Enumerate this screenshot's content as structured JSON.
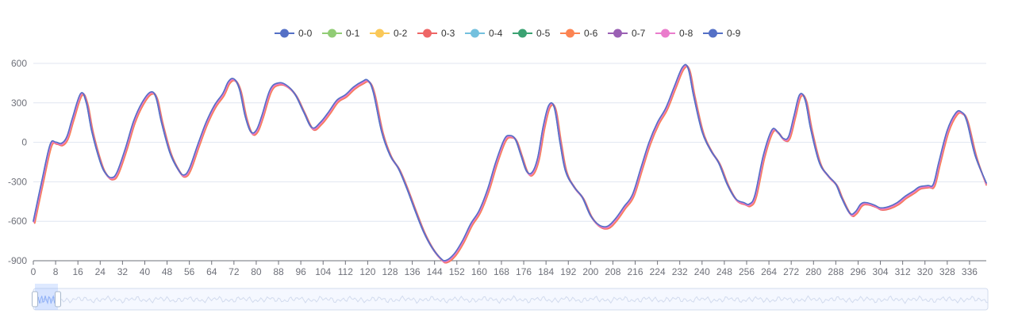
{
  "chart_data": {
    "type": "line",
    "title": "",
    "xlabel": "",
    "ylabel": "",
    "ylim": [
      -900,
      600
    ],
    "y_ticks": [
      "-900",
      "-600",
      "-300",
      "0",
      "300",
      "600"
    ],
    "xlim": [
      0,
      342
    ],
    "x_tick_step": 8,
    "x_ticks": [
      "0",
      "8",
      "16",
      "24",
      "32",
      "40",
      "48",
      "56",
      "64",
      "72",
      "80",
      "88",
      "96",
      "104",
      "112",
      "120",
      "128",
      "136",
      "144",
      "152",
      "160",
      "168",
      "176",
      "184",
      "192",
      "200",
      "208",
      "216",
      "224",
      "232",
      "240",
      "248",
      "256",
      "264",
      "272",
      "280",
      "288",
      "296",
      "304",
      "312",
      "320",
      "328",
      "336"
    ],
    "legend": {
      "position": "top-center"
    },
    "grid": true,
    "base_curve": [
      [
        0,
        -600
      ],
      [
        3,
        -300
      ],
      [
        6,
        -20
      ],
      [
        8,
        0
      ],
      [
        10,
        -10
      ],
      [
        12,
        40
      ],
      [
        14,
        180
      ],
      [
        17,
        370
      ],
      [
        19,
        300
      ],
      [
        21,
        80
      ],
      [
        24,
        -150
      ],
      [
        26,
        -240
      ],
      [
        28,
        -270
      ],
      [
        30,
        -230
      ],
      [
        33,
        -50
      ],
      [
        36,
        160
      ],
      [
        39,
        300
      ],
      [
        42,
        380
      ],
      [
        44,
        340
      ],
      [
        46,
        150
      ],
      [
        49,
        -80
      ],
      [
        52,
        -210
      ],
      [
        54,
        -250
      ],
      [
        56,
        -200
      ],
      [
        59,
        -20
      ],
      [
        62,
        150
      ],
      [
        65,
        280
      ],
      [
        68,
        370
      ],
      [
        70,
        460
      ],
      [
        72,
        480
      ],
      [
        74,
        400
      ],
      [
        76,
        200
      ],
      [
        78,
        80
      ],
      [
        80,
        90
      ],
      [
        82,
        200
      ],
      [
        85,
        400
      ],
      [
        88,
        450
      ],
      [
        91,
        430
      ],
      [
        94,
        360
      ],
      [
        97,
        230
      ],
      [
        100,
        110
      ],
      [
        103,
        150
      ],
      [
        106,
        230
      ],
      [
        109,
        320
      ],
      [
        112,
        360
      ],
      [
        115,
        420
      ],
      [
        118,
        460
      ],
      [
        120,
        470
      ],
      [
        122,
        380
      ],
      [
        125,
        80
      ],
      [
        128,
        -100
      ],
      [
        131,
        -200
      ],
      [
        134,
        -350
      ],
      [
        137,
        -520
      ],
      [
        140,
        -680
      ],
      [
        143,
        -800
      ],
      [
        146,
        -880
      ],
      [
        148,
        -900
      ],
      [
        151,
        -850
      ],
      [
        154,
        -750
      ],
      [
        157,
        -620
      ],
      [
        160,
        -520
      ],
      [
        163,
        -360
      ],
      [
        166,
        -150
      ],
      [
        169,
        20
      ],
      [
        171,
        50
      ],
      [
        173,
        20
      ],
      [
        175,
        -100
      ],
      [
        177,
        -220
      ],
      [
        179,
        -230
      ],
      [
        181,
        -120
      ],
      [
        183,
        120
      ],
      [
        185,
        280
      ],
      [
        187,
        260
      ],
      [
        189,
        0
      ],
      [
        191,
        -220
      ],
      [
        194,
        -340
      ],
      [
        197,
        -420
      ],
      [
        200,
        -560
      ],
      [
        203,
        -630
      ],
      [
        206,
        -640
      ],
      [
        209,
        -580
      ],
      [
        212,
        -490
      ],
      [
        215,
        -400
      ],
      [
        218,
        -200
      ],
      [
        221,
        0
      ],
      [
        224,
        150
      ],
      [
        227,
        260
      ],
      [
        230,
        420
      ],
      [
        233,
        570
      ],
      [
        235,
        560
      ],
      [
        237,
        350
      ],
      [
        240,
        80
      ],
      [
        243,
        -60
      ],
      [
        246,
        -160
      ],
      [
        249,
        -320
      ],
      [
        252,
        -430
      ],
      [
        255,
        -460
      ],
      [
        257,
        -470
      ],
      [
        259,
        -400
      ],
      [
        262,
        -100
      ],
      [
        265,
        90
      ],
      [
        267,
        80
      ],
      [
        269,
        30
      ],
      [
        271,
        40
      ],
      [
        273,
        200
      ],
      [
        275,
        360
      ],
      [
        277,
        320
      ],
      [
        279,
        100
      ],
      [
        282,
        -150
      ],
      [
        285,
        -250
      ],
      [
        288,
        -320
      ],
      [
        290,
        -420
      ],
      [
        293,
        -540
      ],
      [
        295,
        -530
      ],
      [
        297,
        -470
      ],
      [
        299,
        -460
      ],
      [
        302,
        -480
      ],
      [
        304,
        -500
      ],
      [
        307,
        -490
      ],
      [
        310,
        -460
      ],
      [
        313,
        -410
      ],
      [
        316,
        -370
      ],
      [
        318,
        -340
      ],
      [
        321,
        -330
      ],
      [
        323,
        -320
      ],
      [
        325,
        -150
      ],
      [
        328,
        90
      ],
      [
        331,
        220
      ],
      [
        333,
        230
      ],
      [
        335,
        160
      ],
      [
        338,
        -100
      ],
      [
        342,
        -310
      ]
    ],
    "series": [
      {
        "name": "0-0",
        "color": "#5470c6",
        "dx": 0.0,
        "dy": 0
      },
      {
        "name": "0-1",
        "color": "#91cc75",
        "dx": 0.3,
        "dy": -6
      },
      {
        "name": "0-2",
        "color": "#fac858",
        "dx": 0.4,
        "dy": -12
      },
      {
        "name": "0-3",
        "color": "#ee6666",
        "dx": 0.5,
        "dy": -15
      },
      {
        "name": "0-4",
        "color": "#73c0de",
        "dx": 0.2,
        "dy": -4
      },
      {
        "name": "0-5",
        "color": "#3ba272",
        "dx": 0.1,
        "dy": -2
      },
      {
        "name": "0-6",
        "color": "#fc8452",
        "dx": 0.6,
        "dy": -10
      },
      {
        "name": "0-7",
        "color": "#9a60b4",
        "dx": 0.3,
        "dy": -3
      },
      {
        "name": "0-8",
        "color": "#ea7ccc",
        "dx": 0.2,
        "dy": -7
      },
      {
        "name": "0-9",
        "color": "#5470c6",
        "dx": 0.0,
        "dy": 2
      }
    ],
    "data_zoom": {
      "start_fraction": 0.0,
      "end_fraction": 0.025
    }
  }
}
